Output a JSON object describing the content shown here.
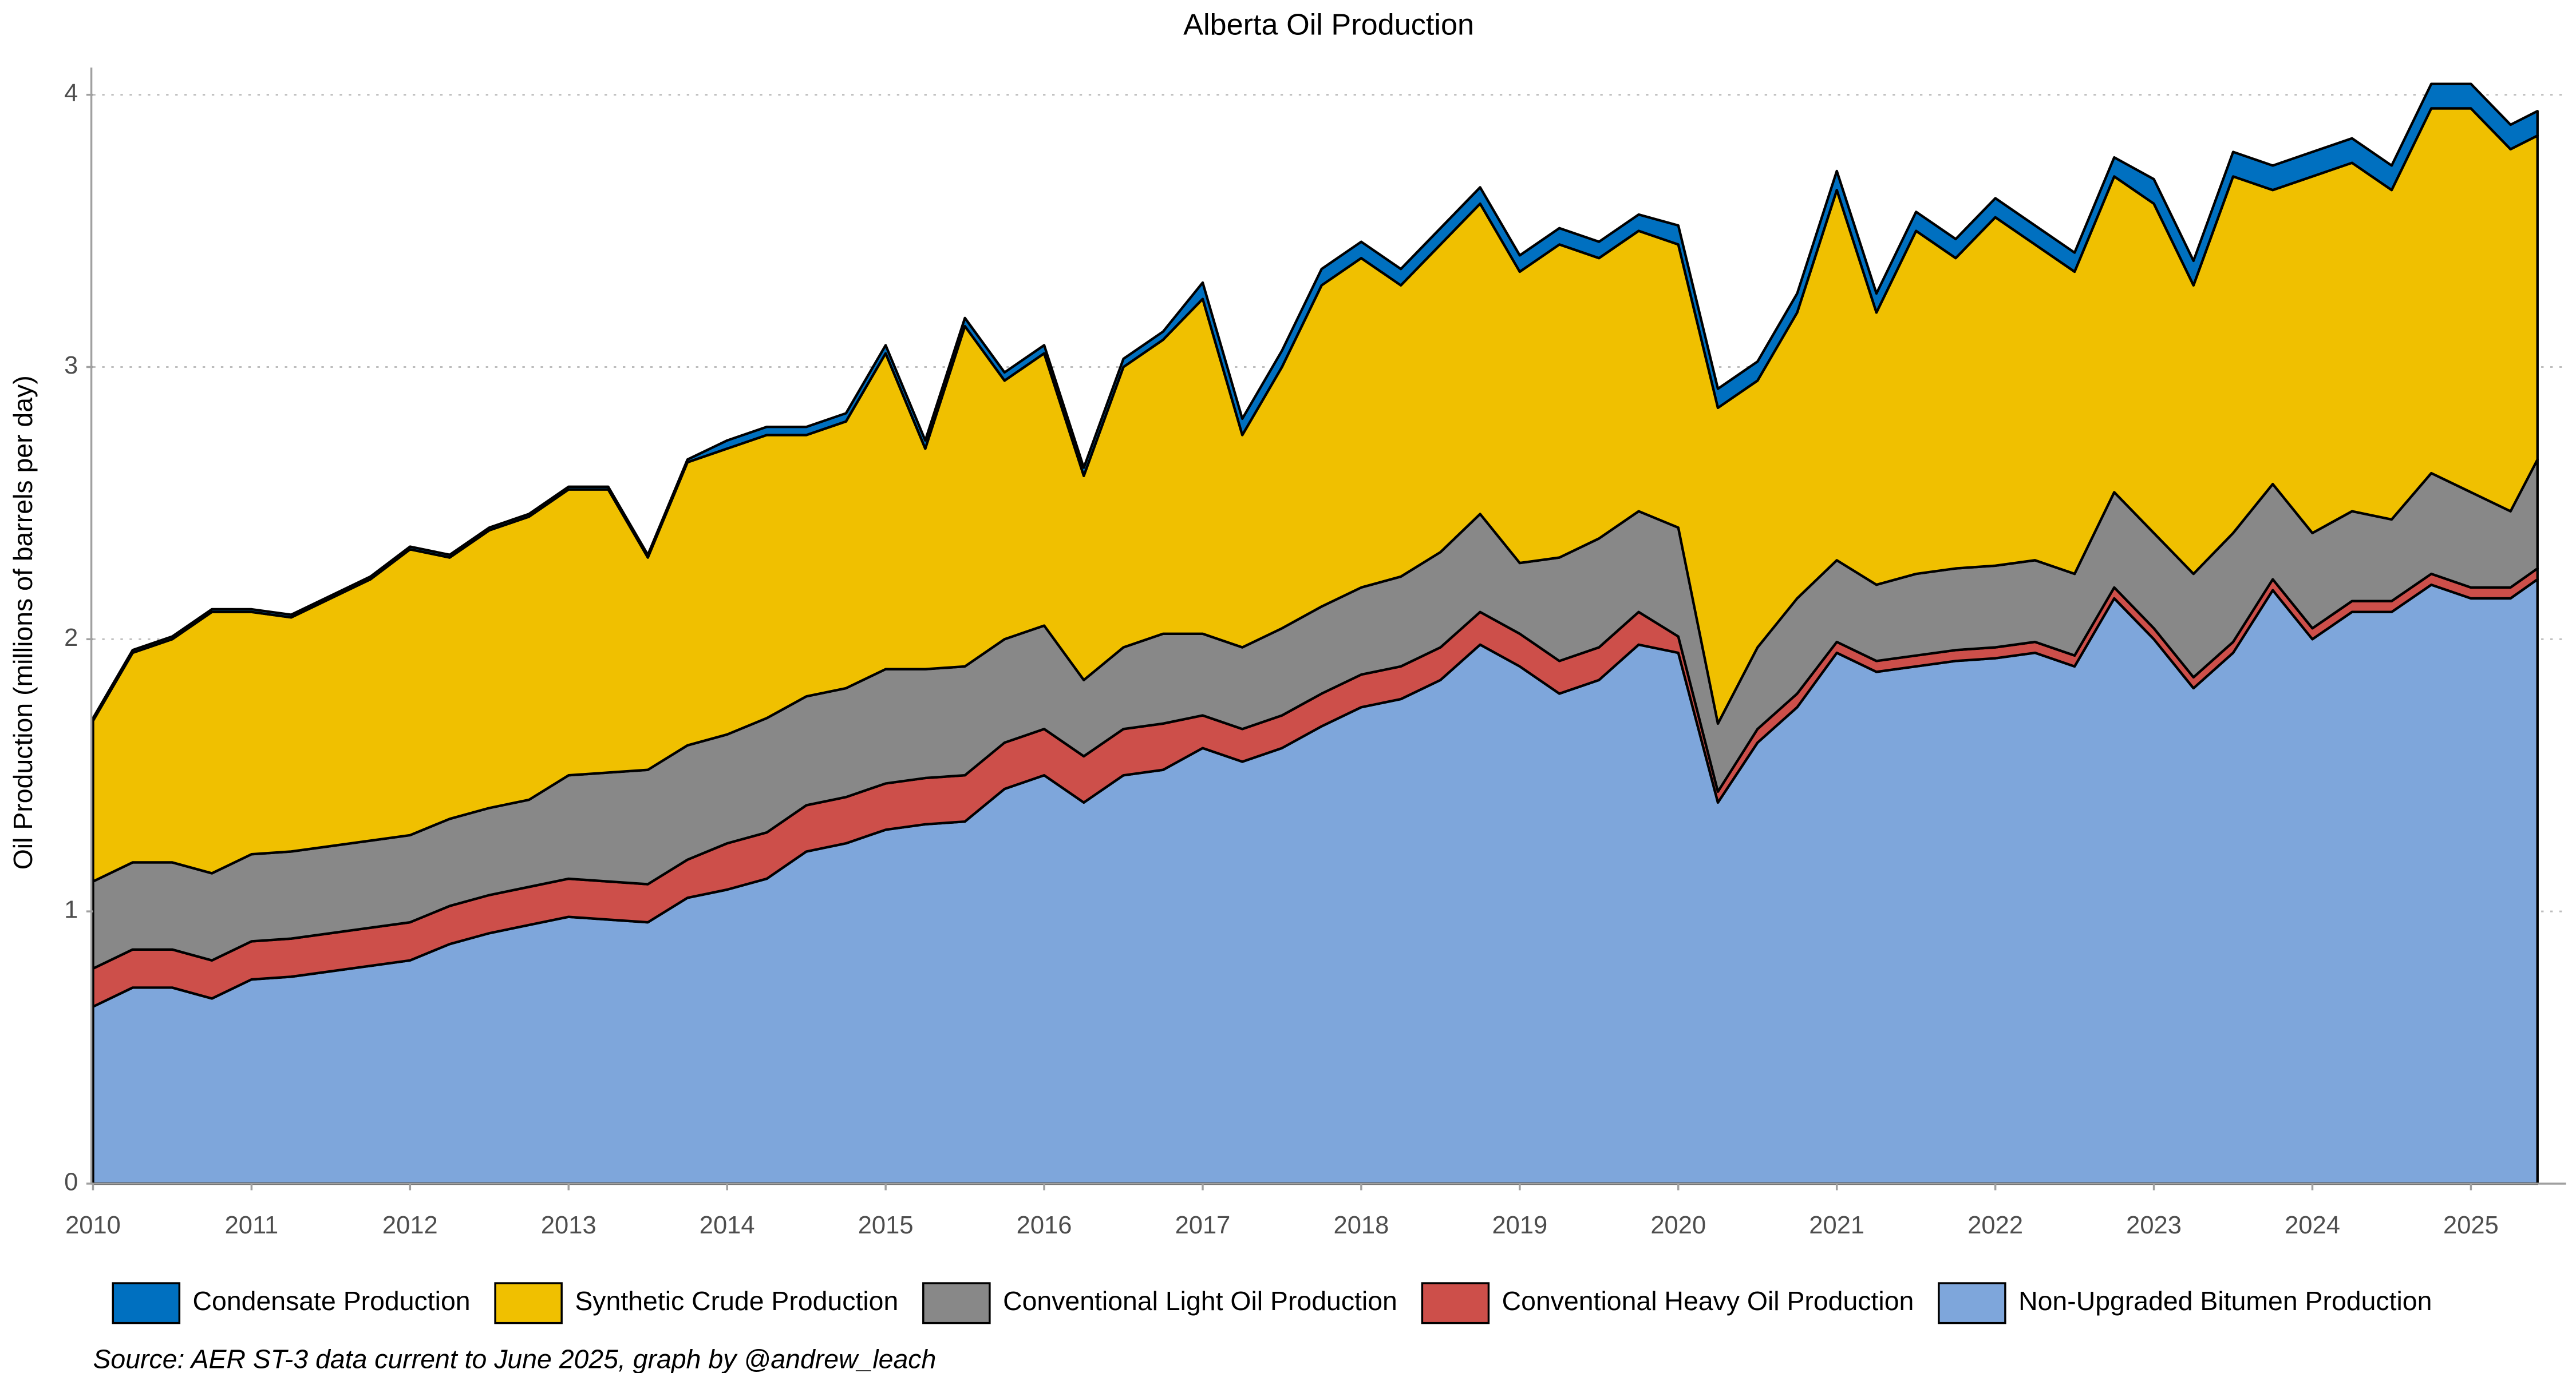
{
  "chart_data": {
    "type": "stacked_area",
    "title": "Alberta Oil Production",
    "y_label": "Oil Production (millions of barrels per day)",
    "caption": "Source: AER ST-3 data current to June 2025, graph by @andrew_leach",
    "legend": "bottom",
    "grid": true,
    "xlim": [
      2010,
      2025.6
    ],
    "xticks": [
      2010,
      2011,
      2012,
      2013,
      2014,
      2015,
      2016,
      2017,
      2018,
      2019,
      2020,
      2021,
      2022,
      2023,
      2024,
      2025
    ],
    "ylim": [
      0,
      4.1
    ],
    "yticks": [
      0,
      1,
      2,
      3,
      4
    ],
    "x": [
      2010,
      2010.25,
      2010.5,
      2010.75,
      2011,
      2011.25,
      2011.5,
      2011.75,
      2012,
      2012.25,
      2012.5,
      2012.75,
      2013,
      2013.25,
      2013.5,
      2013.75,
      2014,
      2014.25,
      2014.5,
      2014.75,
      2015,
      2015.25,
      2015.5,
      2015.75,
      2016,
      2016.25,
      2016.5,
      2016.75,
      2017,
      2017.25,
      2017.5,
      2017.75,
      2018,
      2018.25,
      2018.5,
      2018.75,
      2019,
      2019.25,
      2019.5,
      2019.75,
      2020,
      2020.25,
      2020.5,
      2020.75,
      2021,
      2021.25,
      2021.5,
      2021.75,
      2022,
      2022.25,
      2022.5,
      2022.75,
      2023,
      2023.25,
      2023.5,
      2023.75,
      2024,
      2024.25,
      2024.5,
      2024.75,
      2025,
      2025.25,
      2025.42
    ],
    "series": [
      {
        "name": "Condensate Production",
        "color": "#0070c0",
        "values": [
          0.01,
          0.01,
          0.01,
          0.01,
          0.01,
          0.01,
          0.01,
          0.01,
          0.01,
          0.01,
          0.01,
          0.01,
          0.01,
          0.01,
          0.01,
          0.01,
          0.03,
          0.03,
          0.03,
          0.03,
          0.03,
          0.03,
          0.03,
          0.03,
          0.03,
          0.03,
          0.03,
          0.03,
          0.06,
          0.06,
          0.06,
          0.06,
          0.06,
          0.06,
          0.06,
          0.06,
          0.06,
          0.06,
          0.06,
          0.06,
          0.07,
          0.07,
          0.07,
          0.07,
          0.07,
          0.07,
          0.07,
          0.07,
          0.07,
          0.07,
          0.07,
          0.07,
          0.09,
          0.09,
          0.09,
          0.09,
          0.09,
          0.09,
          0.09,
          0.09,
          0.09,
          0.09,
          0.09
        ]
      },
      {
        "name": "Synthetic Crude Production",
        "color": "#f0c000",
        "values": [
          0.59,
          0.77,
          0.82,
          0.96,
          0.89,
          0.86,
          0.91,
          0.96,
          1.05,
          0.96,
          1.02,
          1.04,
          1.05,
          1.04,
          0.78,
          1.04,
          1.05,
          1.04,
          0.96,
          0.98,
          1.16,
          0.81,
          1.25,
          0.95,
          1.0,
          0.75,
          1.03,
          1.08,
          1.23,
          0.78,
          0.96,
          1.18,
          1.21,
          1.07,
          1.13,
          1.14,
          1.07,
          1.15,
          1.03,
          1.03,
          1.04,
          1.16,
          0.98,
          1.05,
          1.36,
          1.0,
          1.26,
          1.14,
          1.28,
          1.16,
          1.11,
          1.16,
          1.21,
          1.06,
          1.31,
          1.08,
          1.31,
          1.28,
          1.21,
          1.34,
          1.41,
          1.33,
          1.19
        ]
      },
      {
        "name": "Conventional Light Oil Production",
        "color": "#888888",
        "values": [
          0.32,
          0.32,
          0.32,
          0.32,
          0.32,
          0.32,
          0.32,
          0.32,
          0.32,
          0.32,
          0.32,
          0.32,
          0.38,
          0.4,
          0.42,
          0.42,
          0.4,
          0.42,
          0.4,
          0.4,
          0.42,
          0.4,
          0.4,
          0.38,
          0.38,
          0.28,
          0.3,
          0.33,
          0.3,
          0.3,
          0.32,
          0.32,
          0.32,
          0.33,
          0.35,
          0.36,
          0.26,
          0.38,
          0.4,
          0.37,
          0.4,
          0.25,
          0.3,
          0.35,
          0.3,
          0.28,
          0.3,
          0.3,
          0.3,
          0.3,
          0.3,
          0.35,
          0.35,
          0.38,
          0.4,
          0.35,
          0.35,
          0.33,
          0.3,
          0.37,
          0.35,
          0.28,
          0.4
        ]
      },
      {
        "name": "Conventional Heavy Oil Production",
        "color": "#cd4f4a",
        "values": [
          0.14,
          0.14,
          0.14,
          0.14,
          0.14,
          0.14,
          0.14,
          0.14,
          0.14,
          0.14,
          0.14,
          0.14,
          0.14,
          0.14,
          0.14,
          0.14,
          0.17,
          0.17,
          0.17,
          0.17,
          0.17,
          0.17,
          0.17,
          0.17,
          0.17,
          0.17,
          0.17,
          0.17,
          0.12,
          0.12,
          0.12,
          0.12,
          0.12,
          0.12,
          0.12,
          0.12,
          0.12,
          0.12,
          0.12,
          0.12,
          0.06,
          0.04,
          0.05,
          0.05,
          0.04,
          0.04,
          0.04,
          0.04,
          0.04,
          0.04,
          0.04,
          0.04,
          0.04,
          0.04,
          0.04,
          0.04,
          0.04,
          0.04,
          0.04,
          0.04,
          0.04,
          0.04,
          0.04
        ]
      },
      {
        "name": "Non-Upgraded Bitumen Production",
        "color": "#7ea6db",
        "values": [
          0.65,
          0.72,
          0.72,
          0.68,
          0.75,
          0.76,
          0.78,
          0.8,
          0.82,
          0.88,
          0.92,
          0.95,
          0.98,
          0.97,
          0.96,
          1.05,
          1.08,
          1.12,
          1.22,
          1.25,
          1.3,
          1.32,
          1.33,
          1.45,
          1.5,
          1.4,
          1.5,
          1.52,
          1.6,
          1.55,
          1.6,
          1.68,
          1.75,
          1.78,
          1.85,
          1.98,
          1.9,
          1.8,
          1.85,
          1.98,
          1.95,
          1.4,
          1.62,
          1.75,
          1.95,
          1.88,
          1.9,
          1.92,
          1.93,
          1.95,
          1.9,
          2.15,
          2.0,
          1.82,
          1.95,
          2.18,
          2.0,
          2.1,
          2.1,
          2.2,
          2.15,
          2.15,
          2.22
        ]
      }
    ]
  }
}
